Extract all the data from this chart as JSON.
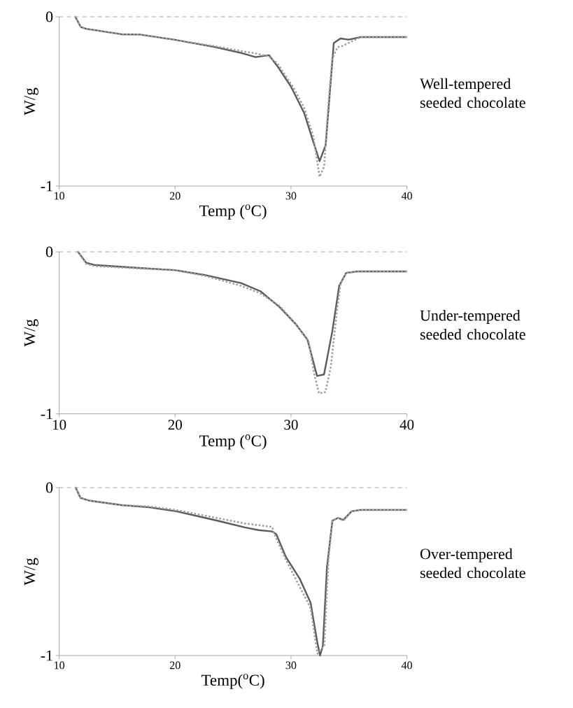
{
  "chart_data": [
    {
      "type": "line",
      "annotations": [
        "Well-tempered seeded chocolate"
      ],
      "xlabel": "Temp ($^{o}$C)",
      "ylabel": "W/g",
      "xlim": [
        10,
        40
      ],
      "ylim": [
        -1,
        0
      ],
      "xticks": [
        10,
        20,
        30,
        40
      ],
      "yticks": [
        -1,
        0
      ],
      "ref_lines": [
        {
          "axis": "y",
          "value": 0,
          "color": "#a8a8a8",
          "line_style": "dashed"
        }
      ],
      "series": [
        {
          "color": "#5a5a5a",
          "line_style": "solid",
          "x": [
            11.39,
            11.86,
            12.32,
            15.34,
            16.97,
            19.98,
            23.47,
            25.79,
            26.95,
            28.11,
            28.81,
            29.97,
            31.13,
            31.94,
            32.47,
            32.99,
            33.34,
            33.69,
            34.27,
            34.97,
            36.01,
            40
          ],
          "values": [
            0,
            -0.06,
            -0.071,
            -0.103,
            -0.105,
            -0.136,
            -0.179,
            -0.215,
            -0.238,
            -0.227,
            -0.29,
            -0.409,
            -0.567,
            -0.742,
            -0.853,
            -0.758,
            -0.456,
            -0.155,
            -0.128,
            -0.135,
            -0.12,
            -0.12
          ]
        },
        {
          "color": "#a0a0a0",
          "line_style": "dotted",
          "x": [
            11.39,
            11.86,
            12.32,
            15.34,
            16.97,
            19.98,
            23.47,
            25.79,
            27.18,
            28.11,
            28.81,
            30.2,
            31.13,
            31.94,
            32.47,
            32.86,
            33.2,
            33.55,
            34.02,
            34.48,
            34.95,
            36.01,
            40
          ],
          "values": [
            0,
            -0.06,
            -0.071,
            -0.103,
            -0.105,
            -0.136,
            -0.174,
            -0.203,
            -0.219,
            -0.235,
            -0.274,
            -0.417,
            -0.536,
            -0.71,
            -0.945,
            -0.884,
            -0.535,
            -0.25,
            -0.179,
            -0.171,
            -0.155,
            -0.12,
            -0.12
          ]
        }
      ]
    },
    {
      "type": "line",
      "annotations": [
        "Under-tempered seeded chocolate"
      ],
      "xlabel": "Temp ($^{o}$C)",
      "ylabel": "W/g",
      "xlim": [
        10,
        40
      ],
      "ylim": [
        -1,
        0
      ],
      "xticks": [
        10,
        20,
        30,
        40
      ],
      "yticks": [
        -1,
        0
      ],
      "ref_lines": [
        {
          "axis": "y",
          "value": 0,
          "color": "#a8a8a8",
          "line_style": "dashed"
        }
      ],
      "series": [
        {
          "color": "#5a5a5a",
          "line_style": "solid",
          "x": [
            11.62,
            12.34,
            13.05,
            16.63,
            19.97,
            22.59,
            25.69,
            27.36,
            29.03,
            30.46,
            31.42,
            32.25,
            32.85,
            33.56,
            34.16,
            34.76,
            35.71,
            40
          ],
          "values": [
            0,
            -0.068,
            -0.081,
            -0.098,
            -0.113,
            -0.143,
            -0.193,
            -0.243,
            -0.342,
            -0.45,
            -0.542,
            -0.766,
            -0.757,
            -0.492,
            -0.209,
            -0.13,
            -0.121,
            -0.121
          ]
        },
        {
          "color": "#a0a0a0",
          "line_style": "dotted",
          "x": [
            11.62,
            12.34,
            13.05,
            16.63,
            19.97,
            22.59,
            25.69,
            27.36,
            29.03,
            30.46,
            31.54,
            32.01,
            32.42,
            32.97,
            33.44,
            33.92,
            34.28,
            34.76,
            35.71,
            40
          ],
          "values": [
            0,
            -0.073,
            -0.088,
            -0.101,
            -0.113,
            -0.148,
            -0.209,
            -0.256,
            -0.334,
            -0.45,
            -0.558,
            -0.757,
            -0.874,
            -0.865,
            -0.708,
            -0.392,
            -0.193,
            -0.13,
            -0.121,
            -0.121
          ]
        }
      ]
    },
    {
      "type": "line",
      "annotations": [
        "Over-tempered seeded chocolate"
      ],
      "xlabel": "Temp($^{o}$C)",
      "ylabel": "W/g",
      "xlim": [
        10,
        40
      ],
      "ylim": [
        -1,
        0
      ],
      "xticks": [
        10,
        20,
        30,
        40
      ],
      "yticks": [
        -1,
        0
      ],
      "ref_lines": [
        {
          "axis": "y",
          "value": 0,
          "color": "#a8a8a8",
          "line_style": "dashed"
        }
      ],
      "series": [
        {
          "color": "#5a5a5a",
          "line_style": "solid",
          "x": [
            11.42,
            11.84,
            12.55,
            15.39,
            17.75,
            20.11,
            23.65,
            26.02,
            27.2,
            28.38,
            28.73,
            29.56,
            30.74,
            31.69,
            32.28,
            32.51,
            32.75,
            33.1,
            33.57,
            34.05,
            34.52,
            35.23,
            35.94,
            40
          ],
          "values": [
            0,
            -0.061,
            -0.077,
            -0.104,
            -0.117,
            -0.141,
            -0.197,
            -0.237,
            -0.253,
            -0.261,
            -0.277,
            -0.413,
            -0.541,
            -0.685,
            -0.925,
            -1.0,
            -0.941,
            -0.477,
            -0.197,
            -0.181,
            -0.192,
            -0.141,
            -0.133,
            -0.133
          ]
        },
        {
          "color": "#a0a0a0",
          "line_style": "dotted",
          "x": [
            11.42,
            11.84,
            12.55,
            15.39,
            17.75,
            20.11,
            23.65,
            26.02,
            28.38,
            28.62,
            29.56,
            30.74,
            31.69,
            32.28,
            32.87,
            33.22,
            33.57,
            34.05,
            34.52,
            35.23,
            35.94,
            40
          ],
          "values": [
            0,
            -0.061,
            -0.077,
            -0.104,
            -0.112,
            -0.133,
            -0.181,
            -0.213,
            -0.234,
            -0.285,
            -0.429,
            -0.589,
            -0.717,
            -0.989,
            -0.941,
            -0.445,
            -0.197,
            -0.181,
            -0.197,
            -0.141,
            -0.133,
            -0.133
          ]
        }
      ]
    }
  ]
}
